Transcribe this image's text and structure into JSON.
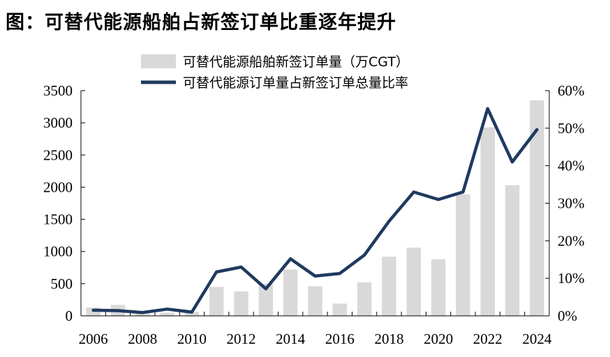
{
  "title": "图：可替代能源船舶占新签订单比重逐年提升",
  "chart_data": {
    "type": "bar+line",
    "x": [
      2006,
      2007,
      2008,
      2009,
      2010,
      2011,
      2012,
      2013,
      2014,
      2015,
      2016,
      2017,
      2018,
      2019,
      2020,
      2021,
      2022,
      2023,
      2024
    ],
    "x_ticks": [
      "2006",
      "2008",
      "2010",
      "2012",
      "2014",
      "2016",
      "2018",
      "2020",
      "2022",
      "2024"
    ],
    "series": [
      {
        "name": "可替代能源船舶新签订单量（万CGT）",
        "type": "bar",
        "axis": "left",
        "color": "#d9d9d9",
        "values": [
          130,
          170,
          60,
          50,
          60,
          450,
          380,
          500,
          720,
          460,
          190,
          520,
          920,
          1060,
          880,
          1890,
          2930,
          2030,
          3350
        ]
      },
      {
        "name": "可替代能源订单量占新签订单总量比率",
        "type": "line",
        "axis": "right",
        "color": "#1f3a5f",
        "values": [
          0.015,
          0.014,
          0.009,
          0.018,
          0.01,
          0.117,
          0.13,
          0.072,
          0.152,
          0.106,
          0.113,
          0.162,
          0.252,
          0.33,
          0.31,
          0.33,
          0.552,
          0.41,
          0.496
        ]
      }
    ],
    "y_left": {
      "lim": [
        0,
        3500
      ],
      "ticks": [
        "0",
        "500",
        "1000",
        "1500",
        "2000",
        "2500",
        "3000",
        "3500"
      ]
    },
    "y_right": {
      "lim": [
        0,
        0.6
      ],
      "ticks": [
        "0%",
        "10%",
        "20%",
        "30%",
        "40%",
        "50%",
        "60%"
      ]
    },
    "legend": "top-center",
    "grid": false
  }
}
